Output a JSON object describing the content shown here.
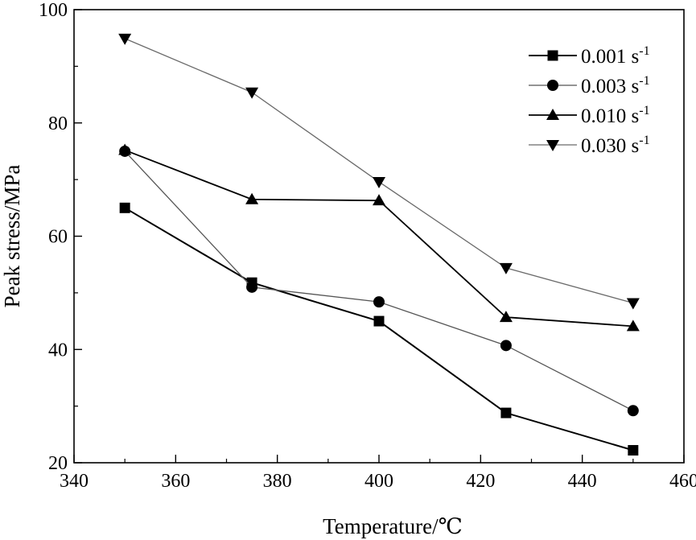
{
  "chart_data": {
    "type": "line",
    "xlabel": "Temperature/℃",
    "ylabel": "Peak stress/MPa",
    "xlim": [
      340,
      460
    ],
    "ylim": [
      20,
      100
    ],
    "xticks": [
      340,
      360,
      380,
      400,
      420,
      440,
      460
    ],
    "yticks": [
      20,
      40,
      60,
      80,
      100
    ],
    "x": [
      350,
      375,
      400,
      425,
      450
    ],
    "grid": false,
    "legend_position": "top-right",
    "series": [
      {
        "name": "0.001 s",
        "unit_exp": "-1",
        "marker": "square",
        "color": "#000000",
        "values": [
          65.0,
          51.8,
          45.0,
          28.8,
          22.2
        ]
      },
      {
        "name": "0.003 s",
        "unit_exp": "-1",
        "marker": "circle",
        "color": "#000000",
        "values": [
          75.0,
          51.0,
          48.4,
          40.7,
          29.2
        ]
      },
      {
        "name": "0.010 s",
        "unit_exp": "-1",
        "marker": "triangle-up",
        "color": "#000000",
        "values": [
          75.2,
          66.5,
          66.3,
          45.7,
          44.1
        ]
      },
      {
        "name": "0.030 s",
        "unit_exp": "-1",
        "marker": "triangle-down",
        "color": "#000000",
        "values": [
          94.9,
          85.4,
          69.6,
          54.4,
          48.2
        ]
      }
    ]
  }
}
